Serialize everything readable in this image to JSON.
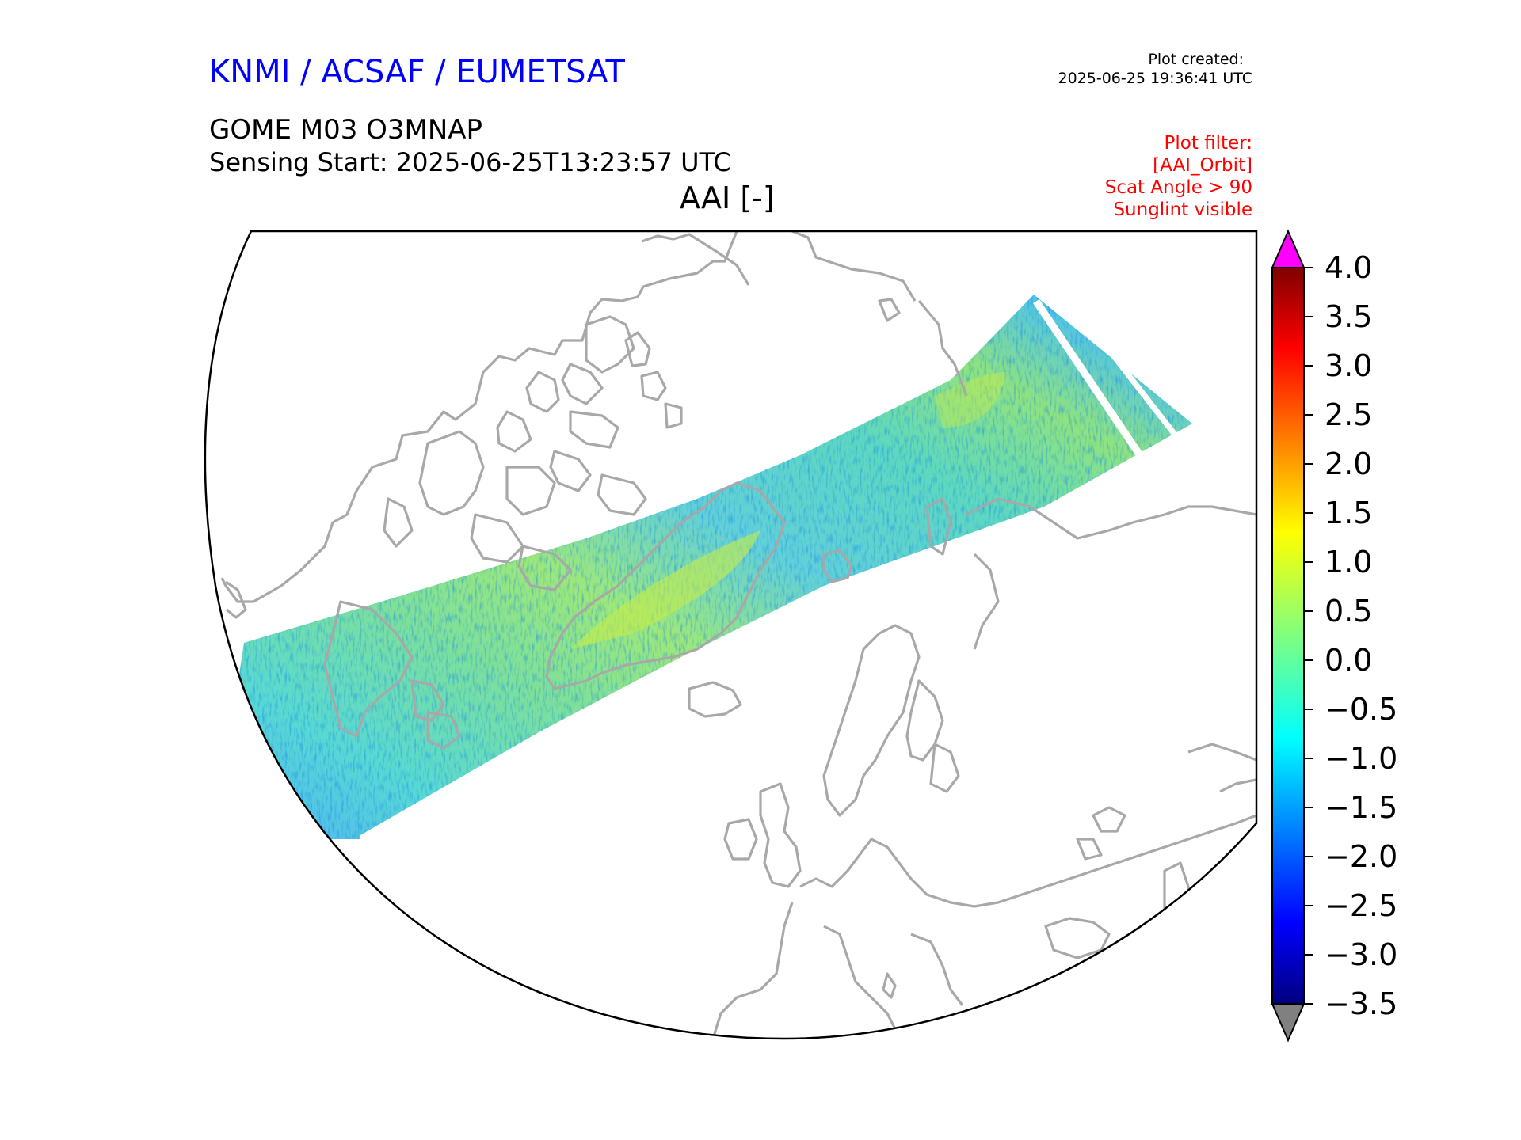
{
  "header": {
    "organization": "KNMI / ACSAF / EUMETSAT",
    "created_label": "Plot created:",
    "created_time": "2025-06-25 19:36:41 UTC",
    "product": "GOME M03 O3MNAP",
    "sensing_start": "Sensing Start: 2025-06-25T13:23:57 UTC",
    "plot_title": "AAI [-]",
    "filters": [
      "Plot filter:",
      "[AAI_Orbit]",
      "Scat Angle > 90",
      "Sunglint visible"
    ]
  },
  "colors": {
    "title": "#0000ff",
    "filter_text": "#ff0000",
    "coastline": "#a8a8a8",
    "over_range": "#ff00ff",
    "under_range": "#808080"
  },
  "colorbar": {
    "min": -3.5,
    "max": 4.0,
    "colormap": "jet",
    "extend": "both",
    "ticks": [
      "4.0",
      "3.5",
      "3.0",
      "2.5",
      "2.0",
      "1.5",
      "1.0",
      "0.5",
      "0.0",
      "−0.5",
      "−1.0",
      "−1.5",
      "−2.0",
      "−2.5",
      "−3.0",
      "−3.5"
    ]
  }
}
